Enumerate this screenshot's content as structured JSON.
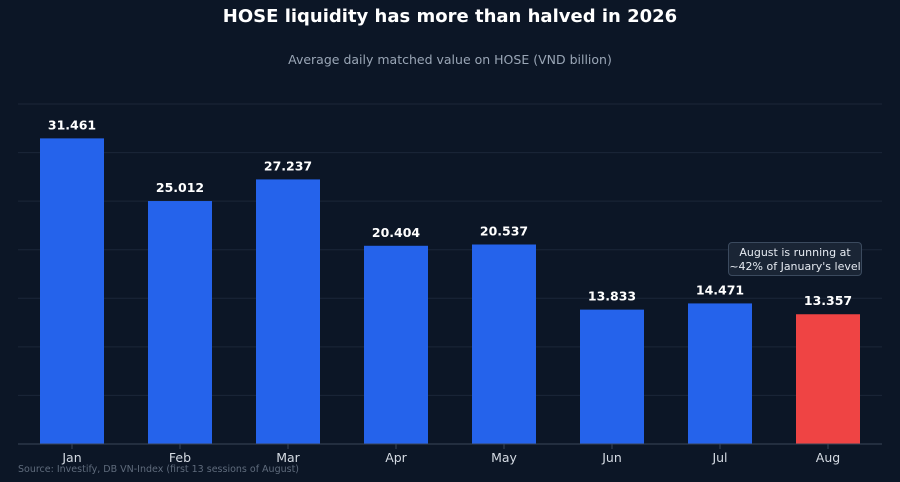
{
  "title": "HOSE liquidity has more than halved in 2026",
  "subtitle": "Average daily matched value on HOSE (VND billion)",
  "source": "Source: Investify, DB VN-Index (first 13 sessions of August)",
  "annotation": {
    "line1": "August is running at",
    "line2": "~42% of January's level"
  },
  "colors": {
    "background": "#0c1626",
    "bar": "#2563eb",
    "highlight": "#ef4444",
    "grid": "#1b2638",
    "axis": "#3a4658"
  },
  "chart_data": {
    "type": "bar",
    "title": "HOSE liquidity has more than halved in 2026",
    "subtitle": "Average daily matched value on HOSE (VND billion)",
    "xlabel": "",
    "ylabel": "",
    "categories": [
      "Jan",
      "Feb",
      "Mar",
      "Apr",
      "May",
      "Jun",
      "Jul",
      "Aug"
    ],
    "values": [
      31.461,
      25.012,
      27.237,
      20.404,
      20.537,
      13.833,
      14.471,
      13.357
    ],
    "value_labels": [
      "31.461",
      "25.012",
      "27.237",
      "20.404",
      "20.537",
      "13.833",
      "14.471",
      "13.357"
    ],
    "highlight_index": 7,
    "ylim": [
      0,
      35
    ],
    "grid": true,
    "legend": "none"
  }
}
